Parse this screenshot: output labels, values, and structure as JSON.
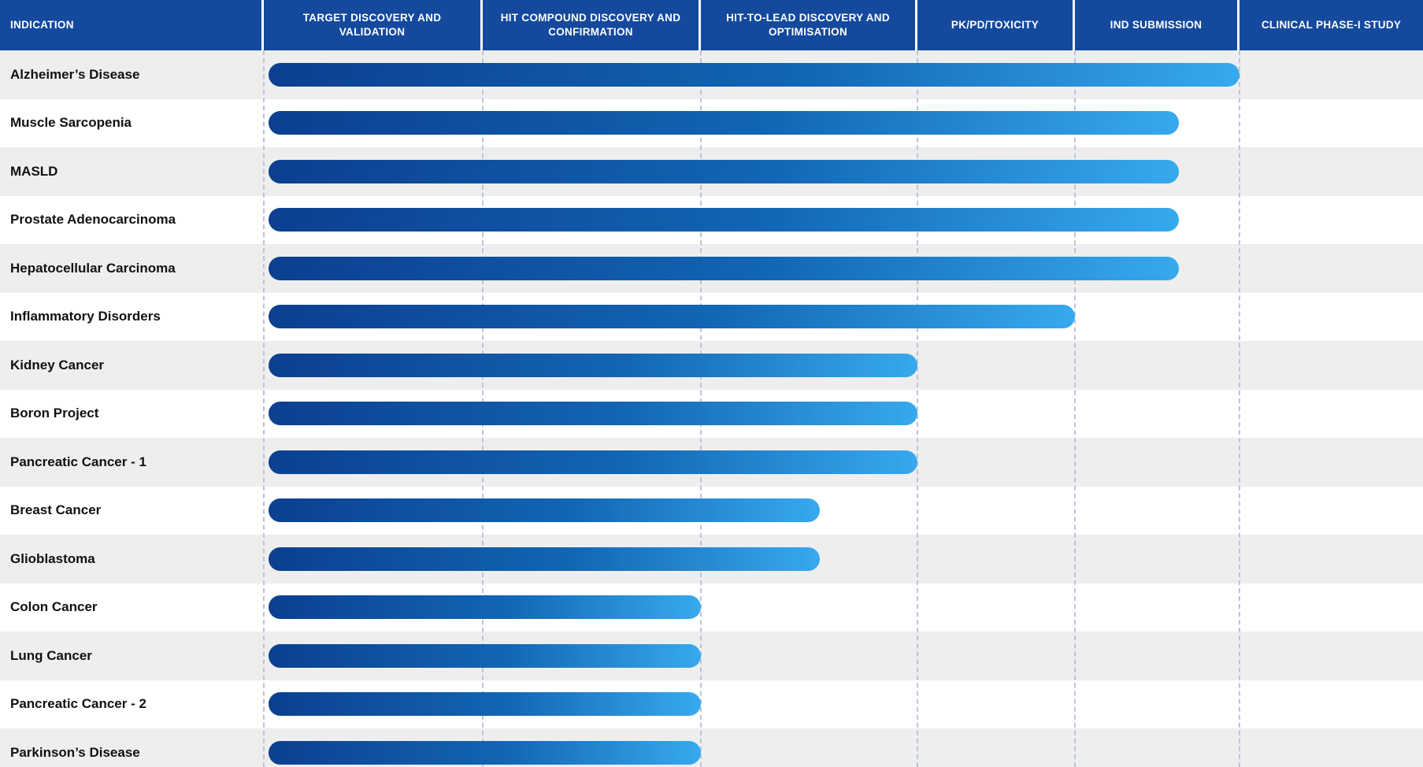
{
  "chart_data": {
    "type": "gantt",
    "columns": [
      "INDICATION",
      "TARGET DISCOVERY AND VALIDATION",
      "HIT COMPOUND DISCOVERY AND CONFIRMATION",
      "HIT-TO-LEAD DISCOVERY AND OPTIMISATION",
      "PK/PD/TOXICITY",
      "IND SUBMISSION",
      "CLINICAL PHASE-I STUDY"
    ],
    "phases": [
      "TARGET DISCOVERY AND VALIDATION",
      "HIT COMPOUND DISCOVERY AND CONFIRMATION",
      "HIT-TO-LEAD DISCOVERY AND OPTIMISATION",
      "PK/PD/TOXICITY",
      "IND SUBMISSION",
      "CLINICAL PHASE-I STUDY"
    ],
    "progress_unit": "pipeline phases completed (0 = start, 6 = all phases complete)",
    "rows": [
      {
        "indication": "Alzheimer’s Disease",
        "phases_completed": 5.0
      },
      {
        "indication": "Muscle Sarcopenia",
        "phases_completed": 4.63
      },
      {
        "indication": "MASLD",
        "phases_completed": 4.63
      },
      {
        "indication": "Prostate Adenocarcinoma",
        "phases_completed": 4.63
      },
      {
        "indication": "Hepatocellular Carcinoma",
        "phases_completed": 4.63
      },
      {
        "indication": "Inflammatory Disorders",
        "phases_completed": 4.0
      },
      {
        "indication": "Kidney Cancer",
        "phases_completed": 3.0
      },
      {
        "indication": "Boron Project",
        "phases_completed": 3.0
      },
      {
        "indication": "Pancreatic Cancer - 1",
        "phases_completed": 3.0
      },
      {
        "indication": "Breast Cancer",
        "phases_completed": 2.55
      },
      {
        "indication": "Glioblastoma",
        "phases_completed": 2.55
      },
      {
        "indication": "Colon Cancer",
        "phases_completed": 2.0
      },
      {
        "indication": "Lung Cancer",
        "phases_completed": 2.0
      },
      {
        "indication": "Pancreatic Cancer - 2",
        "phases_completed": 2.0
      },
      {
        "indication": "Parkinson’s Disease",
        "phases_completed": 2.0
      }
    ],
    "layout": {
      "legend": "none",
      "grid": "dashed vertical lines at phase boundaries",
      "striped_rows": true,
      "bar_style": "rounded horizontal bars with left-to-right dark-to-light blue gradient"
    }
  },
  "colors": {
    "header_bg": "#14499d",
    "header_text": "#ffffff",
    "bar_gradient_start": "#0c3f90",
    "bar_gradient_end": "#37a9ee",
    "row_alt_bg": "#eeeeee",
    "row_bg": "#ffffff",
    "gridline": "#b9c5d7",
    "label_text": "#111111"
  }
}
